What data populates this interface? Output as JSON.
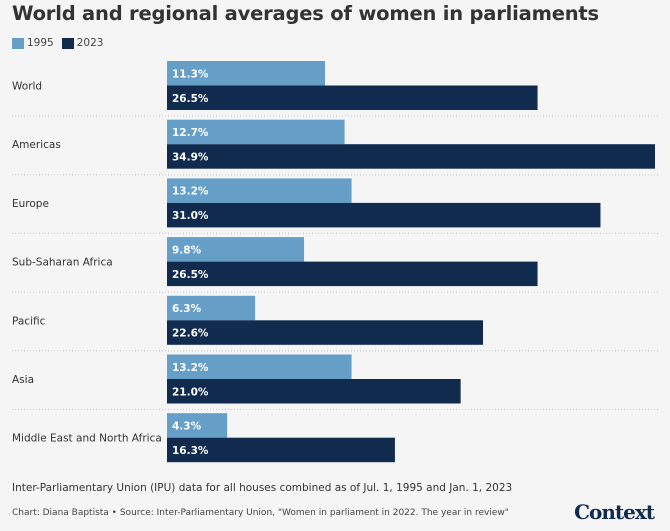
{
  "chart_data": {
    "type": "bar",
    "orientation": "horizontal",
    "title": "World and regional averages of women in parliaments",
    "categories": [
      "World",
      "Americas",
      "Europe",
      "Sub-Saharan Africa",
      "Pacific",
      "Asia",
      "Middle East and North Africa"
    ],
    "series": [
      {
        "name": "1995",
        "color": "#659fc8",
        "values": [
          11.3,
          12.7,
          13.2,
          9.8,
          6.3,
          13.2,
          4.3
        ]
      },
      {
        "name": "2023",
        "color": "#112b4e",
        "values": [
          26.5,
          34.9,
          31.0,
          26.5,
          22.6,
          21.0,
          16.3
        ]
      }
    ],
    "value_suffix": "%",
    "xlim": [
      0,
      34.9
    ],
    "legend": "top-left",
    "grid": false
  },
  "note": "Inter-Parliamentary Union (IPU) data for all houses combined as of Jul. 1, 1995 and Jan. 1, 2023",
  "source": "Chart: Diana Baptista • Source: Inter-Parliamentary Union, \"Women in parliament in 2022. The year in review\"",
  "logo": "Context"
}
